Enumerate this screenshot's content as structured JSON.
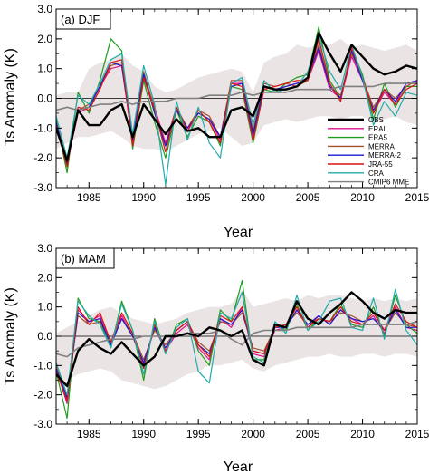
{
  "figure": {
    "x_label": "Year",
    "y_label": "Ts Anomaly (K)"
  },
  "chart_data": [
    {
      "type": "line",
      "panel_label": "(a) DJF",
      "xlabel": "Year",
      "ylabel": "Ts Anomaly (K)",
      "xlim": [
        1982,
        2015
      ],
      "ylim": [
        -3.0,
        3.0
      ],
      "x_ticks": [
        "1985",
        "1990",
        "1995",
        "2000",
        "2005",
        "2010",
        "2015"
      ],
      "y_ticks": [
        "-3.0",
        "-2.0",
        "-1.0",
        "0.0",
        "1.0",
        "2.0",
        "3.0"
      ],
      "x": [
        1982,
        1983,
        1984,
        1985,
        1986,
        1987,
        1988,
        1989,
        1990,
        1991,
        1992,
        1993,
        1994,
        1995,
        1996,
        1997,
        1998,
        1999,
        2000,
        2001,
        2002,
        2003,
        2004,
        2005,
        2006,
        2007,
        2008,
        2009,
        2010,
        2011,
        2012,
        2013,
        2014,
        2015
      ],
      "legend_position": "bottom-right",
      "spread_band": {
        "upper": [
          0.1,
          0.2,
          0.2,
          1.0,
          1.2,
          1.3,
          1.5,
          1.1,
          0.9,
          0.4,
          0.2,
          0.3,
          0.5,
          0.7,
          0.8,
          0.9,
          1.0,
          0.9,
          0.2,
          1.2,
          1.4,
          1.5,
          1.8,
          1.7,
          1.8,
          1.8,
          2.0,
          1.7,
          1.8,
          1.7,
          1.6,
          1.7,
          1.8,
          1.6
        ],
        "lower": [
          -1.7,
          -1.5,
          -1.3,
          -1.3,
          -1.2,
          -1.1,
          -1.3,
          -1.6,
          -1.7,
          -1.7,
          -1.8,
          -1.6,
          -1.4,
          -1.2,
          -1.1,
          -1.0,
          -1.3,
          -1.6,
          -1.5,
          -0.9,
          -0.8,
          -0.7,
          -0.8,
          -0.7,
          -0.6,
          -0.6,
          -0.7,
          -0.6,
          -0.6,
          -0.8,
          -0.7,
          -0.6,
          -0.8,
          -0.9
        ]
      },
      "series": [
        {
          "name": "OBS",
          "color": "#000000",
          "width": 2.4,
          "dash": "",
          "values": [
            -1.0,
            -2.1,
            -0.4,
            -0.9,
            -0.9,
            -0.4,
            -0.2,
            -1.3,
            -0.2,
            -0.7,
            -1.2,
            -0.7,
            -1.1,
            -1.0,
            -1.3,
            -1.3,
            -0.4,
            -0.3,
            -0.6,
            0.4,
            0.3,
            0.3,
            0.4,
            0.7,
            2.2,
            1.5,
            0.9,
            1.8,
            1.4,
            1.0,
            0.8,
            0.9,
            1.1,
            1.0
          ]
        },
        {
          "name": "ERAI",
          "color": "#e0108f",
          "width": 1.2,
          "dash": "",
          "values": [
            -0.9,
            -2.2,
            -0.5,
            -0.3,
            0.4,
            1.0,
            1.1,
            -1.5,
            0.8,
            -0.3,
            -1.5,
            -0.3,
            -1.1,
            -0.5,
            -0.7,
            -1.4,
            0.5,
            0.5,
            -1.3,
            0.4,
            0.3,
            0.4,
            0.5,
            0.6,
            1.6,
            0.3,
            0.0,
            1.4,
            0.6,
            -0.5,
            0.2,
            -0.2,
            0.5,
            0.6
          ]
        },
        {
          "name": "ERA5",
          "color": "#1f9b1f",
          "width": 1.2,
          "dash": "",
          "values": [
            -0.7,
            -2.5,
            0.2,
            -0.5,
            0.6,
            2.0,
            1.6,
            -1.7,
            0.6,
            -0.8,
            -2.0,
            -0.4,
            -1.3,
            -0.6,
            -0.8,
            -1.6,
            0.4,
            0.3,
            -1.5,
            0.3,
            0.2,
            0.5,
            0.7,
            0.8,
            2.4,
            0.6,
            0.0,
            1.7,
            0.8,
            -0.7,
            0.5,
            -0.3,
            0.4,
            0.4
          ]
        },
        {
          "name": "MERRA",
          "color": "#a0522d",
          "width": 1.2,
          "dash": "",
          "values": [
            -0.8,
            -2.1,
            -0.4,
            -0.2,
            0.4,
            1.1,
            1.2,
            -1.3,
            0.9,
            -0.4,
            -1.6,
            -0.3,
            -1.0,
            -0.4,
            -0.6,
            -1.3,
            0.6,
            0.6,
            -1.1,
            0.5,
            0.4,
            0.5,
            0.4,
            0.6,
            1.8,
            0.4,
            0.1,
            1.5,
            0.7,
            -0.3,
            0.3,
            0.0,
            0.4,
            0.6
          ]
        },
        {
          "name": "MERRA-2",
          "color": "#1a1acc",
          "width": 1.2,
          "dash": "",
          "values": [
            -0.8,
            -2.2,
            -0.4,
            -0.3,
            0.4,
            1.2,
            1.1,
            -1.4,
            0.8,
            -0.5,
            -1.6,
            -0.4,
            -1.0,
            -0.5,
            -0.7,
            -1.3,
            0.4,
            0.5,
            -1.2,
            0.4,
            0.3,
            0.4,
            0.5,
            0.7,
            1.7,
            0.4,
            0.0,
            1.6,
            0.6,
            -0.4,
            0.3,
            -0.1,
            0.5,
            0.6
          ]
        },
        {
          "name": "JRA-55",
          "color": "#dd1111",
          "width": 1.2,
          "dash": "",
          "values": [
            -0.9,
            -2.3,
            -0.3,
            -0.4,
            0.3,
            1.2,
            1.3,
            -1.6,
            0.7,
            -0.4,
            -1.8,
            -0.3,
            -1.1,
            -0.4,
            -0.8,
            -1.5,
            0.5,
            0.4,
            -1.4,
            0.3,
            0.4,
            0.5,
            0.6,
            0.6,
            2.0,
            0.5,
            -0.1,
            1.7,
            0.7,
            -0.5,
            0.3,
            -0.2,
            0.3,
            0.5
          ]
        },
        {
          "name": "CRA",
          "color": "#22aaaa",
          "width": 1.2,
          "dash": "",
          "values": [
            -0.6,
            -2.0,
            0.1,
            -0.2,
            0.5,
            1.3,
            1.5,
            -1.2,
            1.1,
            -0.2,
            -2.9,
            -0.1,
            -1.4,
            -0.3,
            -1.5,
            -2.0,
            0.5,
            0.7,
            -0.9,
            0.6,
            0.2,
            0.3,
            0.4,
            0.9,
            2.1,
            0.9,
            0.3,
            1.8,
            0.7,
            -0.9,
            -0.1,
            -0.6,
            0.2,
            0.1
          ]
        },
        {
          "name": "CMIP6 MME",
          "color": "#808080",
          "width": 1.6,
          "dash": "",
          "values": [
            -0.4,
            -0.3,
            -0.4,
            -0.3,
            -0.2,
            -0.2,
            -0.1,
            -0.2,
            -0.1,
            -0.1,
            -0.1,
            0.0,
            0.0,
            0.0,
            0.1,
            0.1,
            0.1,
            0.2,
            0.1,
            0.2,
            0.2,
            0.2,
            0.3,
            0.3,
            0.3,
            0.3,
            0.4,
            0.4,
            0.4,
            0.4,
            0.5,
            0.5,
            0.5,
            0.5
          ]
        }
      ]
    },
    {
      "type": "line",
      "panel_label": "(b) MAM",
      "xlabel": "Year",
      "ylabel": "Ts Anomaly (K)",
      "xlim": [
        1982,
        2015
      ],
      "ylim": [
        -3.0,
        3.0
      ],
      "x_ticks": [
        "1985",
        "1990",
        "1995",
        "2000",
        "2005",
        "2010",
        "2015"
      ],
      "y_ticks": [
        "-3.0",
        "-2.0",
        "-1.0",
        "0.0",
        "1.0",
        "2.0",
        "3.0"
      ],
      "x": [
        1982,
        1983,
        1984,
        1985,
        1986,
        1987,
        1988,
        1989,
        1990,
        1991,
        1992,
        1993,
        1994,
        1995,
        1996,
        1997,
        1998,
        1999,
        2000,
        2001,
        2002,
        2003,
        2004,
        2005,
        2006,
        2007,
        2008,
        2009,
        2010,
        2011,
        2012,
        2013,
        2014,
        2015
      ],
      "spread_band": {
        "upper": [
          0.1,
          0.3,
          0.5,
          0.7,
          0.9,
          1.0,
          0.8,
          0.6,
          0.5,
          0.4,
          0.5,
          0.6,
          0.8,
          0.9,
          1.0,
          1.0,
          1.1,
          1.6,
          1.0,
          1.1,
          1.2,
          1.3,
          1.2,
          1.4,
          1.3,
          1.4,
          1.4,
          1.3,
          1.2,
          1.3,
          1.2,
          1.3,
          1.2,
          1.3
        ],
        "lower": [
          -1.6,
          -1.5,
          -1.3,
          -1.2,
          -1.1,
          -1.2,
          -1.5,
          -1.6,
          -1.7,
          -1.8,
          -1.7,
          -1.5,
          -1.3,
          -1.2,
          -1.0,
          -1.0,
          -0.9,
          -0.8,
          -1.1,
          -1.2,
          -1.0,
          -0.9,
          -0.8,
          -0.7,
          -0.7,
          -0.6,
          -0.7,
          -0.7,
          -0.6,
          -0.6,
          -0.7,
          -0.6,
          -0.6,
          -0.7
        ]
      },
      "series": [
        {
          "name": "OBS",
          "color": "#000000",
          "width": 2.4,
          "dash": "",
          "values": [
            -1.3,
            -1.7,
            -0.5,
            -0.1,
            -0.4,
            -0.6,
            -0.2,
            -0.6,
            -1.0,
            -0.7,
            0.0,
            0.0,
            0.1,
            0.0,
            0.3,
            0.2,
            0.0,
            0.2,
            -0.8,
            -1.0,
            0.4,
            0.3,
            1.2,
            0.6,
            0.4,
            0.8,
            1.1,
            1.5,
            1.2,
            0.8,
            0.6,
            0.9,
            0.8,
            0.8
          ]
        },
        {
          "name": "ERAI",
          "color": "#e0108f",
          "width": 1.2,
          "dash": "",
          "values": [
            -1.1,
            -2.3,
            0.9,
            0.5,
            0.7,
            -0.3,
            0.7,
            0.0,
            -1.0,
            0.3,
            -0.5,
            0.1,
            0.4,
            -0.4,
            -0.8,
            0.6,
            0.3,
            1.0,
            -0.6,
            -0.7,
            0.2,
            0.3,
            0.9,
            0.3,
            0.7,
            0.4,
            0.9,
            0.6,
            0.4,
            0.7,
            0.1,
            1.0,
            0.3,
            0.2
          ]
        },
        {
          "name": "ERA5",
          "color": "#1f9b1f",
          "width": 1.2,
          "dash": "",
          "values": [
            -1.2,
            -2.8,
            1.3,
            0.6,
            0.5,
            -0.4,
            1.2,
            0.2,
            -1.5,
            0.6,
            -0.6,
            0.4,
            0.6,
            -0.5,
            -1.0,
            0.9,
            0.5,
            1.9,
            -0.8,
            -0.8,
            0.4,
            0.2,
            1.1,
            0.2,
            0.6,
            0.5,
            1.1,
            0.4,
            0.3,
            1.0,
            0.0,
            1.4,
            0.4,
            0.1
          ]
        },
        {
          "name": "MERRA",
          "color": "#a0522d",
          "width": 1.2,
          "dash": "",
          "values": [
            -1.0,
            -2.0,
            0.7,
            0.4,
            0.5,
            -0.2,
            0.6,
            0.1,
            -0.8,
            0.2,
            -0.3,
            0.2,
            0.5,
            -0.2,
            -0.5,
            0.5,
            0.4,
            0.8,
            -0.4,
            -0.5,
            0.3,
            0.4,
            0.8,
            0.4,
            0.6,
            0.5,
            0.8,
            0.7,
            0.5,
            0.6,
            0.2,
            0.8,
            0.4,
            0.3
          ]
        },
        {
          "name": "MERRA-2",
          "color": "#1a1acc",
          "width": 1.2,
          "dash": "",
          "values": [
            -1.1,
            -2.1,
            0.8,
            0.5,
            0.6,
            -0.3,
            0.6,
            0.0,
            -0.9,
            0.3,
            -0.4,
            0.2,
            0.5,
            -0.3,
            -0.6,
            0.6,
            0.4,
            0.9,
            -0.5,
            -0.6,
            0.3,
            0.3,
            0.9,
            0.4,
            0.7,
            0.4,
            0.9,
            0.6,
            0.5,
            0.6,
            0.2,
            0.9,
            0.3,
            0.3
          ]
        },
        {
          "name": "JRA-55",
          "color": "#dd1111",
          "width": 1.2,
          "dash": "",
          "values": [
            -1.2,
            -2.2,
            1.0,
            0.4,
            0.8,
            -0.2,
            0.8,
            0.1,
            -1.1,
            0.4,
            -0.5,
            0.2,
            0.5,
            -0.3,
            -0.7,
            0.7,
            0.5,
            1.0,
            -0.5,
            -0.6,
            0.3,
            0.4,
            1.0,
            0.3,
            0.6,
            0.5,
            1.0,
            0.5,
            0.4,
            0.8,
            0.2,
            1.1,
            0.5,
            0.3
          ]
        },
        {
          "name": "CRA",
          "color": "#22aaaa",
          "width": 1.2,
          "dash": "",
          "values": [
            -0.9,
            -2.0,
            1.2,
            0.7,
            0.4,
            -0.4,
            1.1,
            0.2,
            -1.3,
            0.5,
            -0.6,
            0.3,
            0.6,
            -1.2,
            -1.6,
            0.8,
            0.6,
            1.5,
            -0.7,
            -0.9,
            0.5,
            0.1,
            1.4,
            0.2,
            0.5,
            1.2,
            1.3,
            0.3,
            0.2,
            1.3,
            -0.1,
            1.6,
            0.2,
            -0.3
          ]
        },
        {
          "name": "CMIP6 MME",
          "color": "#808080",
          "width": 1.6,
          "dash": "",
          "values": [
            -0.6,
            -0.7,
            -0.4,
            -0.3,
            -0.2,
            -0.1,
            -0.1,
            -0.1,
            0.0,
            0.0,
            0.0,
            0.0,
            0.1,
            0.1,
            0.1,
            0.2,
            -0.1,
            -0.3,
            0.1,
            0.2,
            0.2,
            0.2,
            0.3,
            0.3,
            0.3,
            0.3,
            0.3,
            0.3,
            0.4,
            0.4,
            0.4,
            0.4,
            0.4,
            0.5
          ]
        }
      ]
    }
  ]
}
